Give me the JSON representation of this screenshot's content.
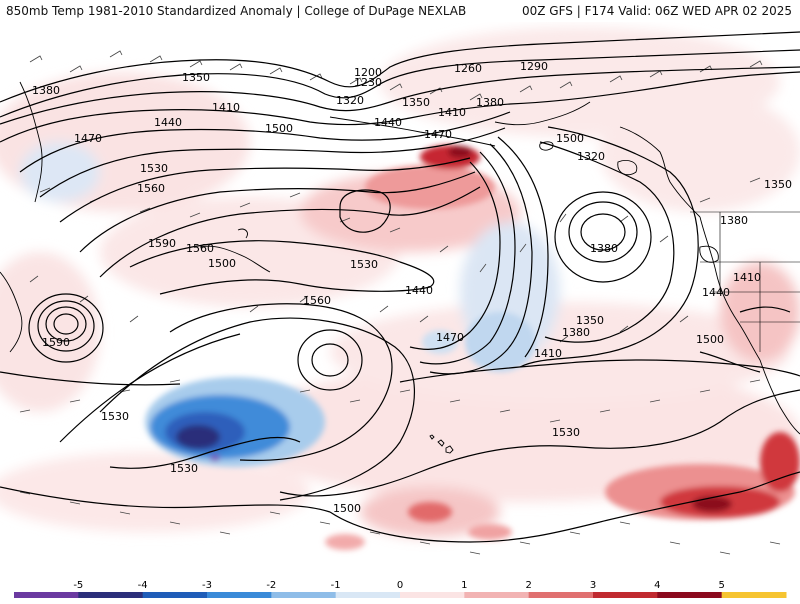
{
  "title": {
    "left": "850mb Temp 1981-2010 Standardized Anomaly | College of DuPage NEXLAB",
    "right": "00Z GFS | F174 Valid: 06Z WED APR 02 2025"
  },
  "map": {
    "contour_labels": [
      "1350",
      "1380",
      "1410",
      "1440",
      "1470",
      "1500",
      "1530",
      "1560",
      "1590",
      "1200",
      "1230",
      "1260",
      "1290",
      "1320",
      "1350",
      "1380",
      "1410",
      "1440",
      "1470",
      "1500",
      "1530",
      "1560",
      "1590",
      "1440",
      "1560",
      "1530",
      "1500",
      "1500",
      "1380",
      "1320",
      "1350",
      "1380",
      "1410",
      "1470",
      "1530",
      "1530",
      "1380",
      "1410",
      "1440",
      "1500",
      "1350"
    ],
    "colors": {
      "strong_warm": "#8b0a1e",
      "warm": "#d33a3e",
      "mild_warm": "#f0a8a8",
      "slight_warm": "#fae0e0",
      "slight_cold": "#d6e4f4",
      "mild_cold": "#8fbde8",
      "cold": "#3a7fd0",
      "strong_cold": "#2b2f7a",
      "extreme_cold": "#7a3fb0",
      "contour": "#000000",
      "coast": "#000000",
      "barb": "#333333"
    }
  },
  "colorbar": {
    "ticks": [
      "-5",
      "-4",
      "-3",
      "-2",
      "-1",
      "0",
      "1",
      "2",
      "3",
      "4",
      "5"
    ],
    "colors": [
      "#6b3aa0",
      "#2b2f7a",
      "#1f5db8",
      "#3a8ad8",
      "#8fbde8",
      "#d9e7f5",
      "#fbe4e4",
      "#f2b3b3",
      "#e07070",
      "#c02a30",
      "#8b0a1e",
      "#f6c431"
    ]
  }
}
